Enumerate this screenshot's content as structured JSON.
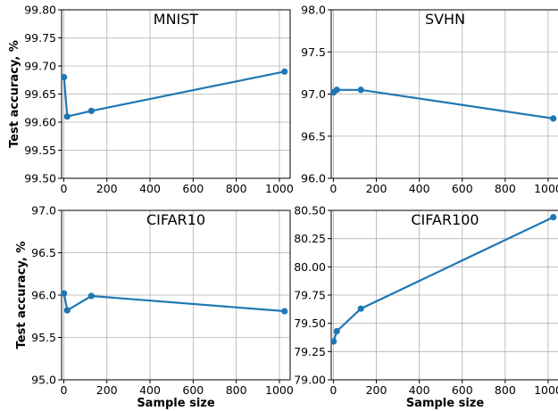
{
  "figure": {
    "ylabel": "Test accuracy, %",
    "xlabel": "Sample size"
  },
  "chart_data": [
    {
      "type": "line",
      "title": "MNIST",
      "ylabel": "Test accuracy, %",
      "xlabel": "",
      "xlim": [
        -10,
        1050
      ],
      "ylim": [
        99.5,
        99.8
      ],
      "x_ticks": [
        0,
        200,
        400,
        600,
        800,
        1000
      ],
      "y_ticks": [
        99.5,
        99.55,
        99.6,
        99.65,
        99.7,
        99.75,
        99.8
      ],
      "y_decimals": 2,
      "grid": true,
      "color": "#1f77b4",
      "series": [
        {
          "x": [
            1,
            16,
            128,
            1024
          ],
          "y": [
            99.68,
            99.61,
            99.62,
            99.69
          ]
        }
      ]
    },
    {
      "type": "line",
      "title": "SVHN",
      "ylabel": "",
      "xlabel": "",
      "xlim": [
        -10,
        1050
      ],
      "ylim": [
        96.0,
        98.0
      ],
      "x_ticks": [
        0,
        200,
        400,
        600,
        800,
        1000
      ],
      "y_ticks": [
        96.0,
        96.5,
        97.0,
        97.5,
        98.0
      ],
      "y_decimals": 1,
      "grid": true,
      "color": "#1f77b4",
      "series": [
        {
          "x": [
            1,
            16,
            128,
            1024
          ],
          "y": [
            97.02,
            97.05,
            97.05,
            96.71
          ]
        }
      ]
    },
    {
      "type": "line",
      "title": "CIFAR10",
      "ylabel": "Test accuracy, %",
      "xlabel": "Sample size",
      "xlim": [
        -10,
        1050
      ],
      "ylim": [
        95.0,
        97.0
      ],
      "x_ticks": [
        0,
        200,
        400,
        600,
        800,
        1000
      ],
      "y_ticks": [
        95.0,
        95.5,
        96.0,
        96.5,
        97.0
      ],
      "y_decimals": 1,
      "grid": true,
      "color": "#1f77b4",
      "series": [
        {
          "x": [
            1,
            16,
            128,
            1024
          ],
          "y": [
            96.02,
            95.82,
            95.99,
            95.81
          ]
        }
      ]
    },
    {
      "type": "line",
      "title": "CIFAR100",
      "ylabel": "",
      "xlabel": "Sample size",
      "xlim": [
        -10,
        1050
      ],
      "ylim": [
        79.0,
        80.5
      ],
      "x_ticks": [
        0,
        200,
        400,
        600,
        800,
        1000
      ],
      "y_ticks": [
        79.0,
        79.25,
        79.5,
        79.75,
        80.0,
        80.25,
        80.5
      ],
      "y_decimals": 2,
      "grid": true,
      "color": "#1f77b4",
      "series": [
        {
          "x": [
            1,
            16,
            128,
            1024
          ],
          "y": [
            79.34,
            79.43,
            79.63,
            80.44
          ]
        }
      ]
    }
  ]
}
